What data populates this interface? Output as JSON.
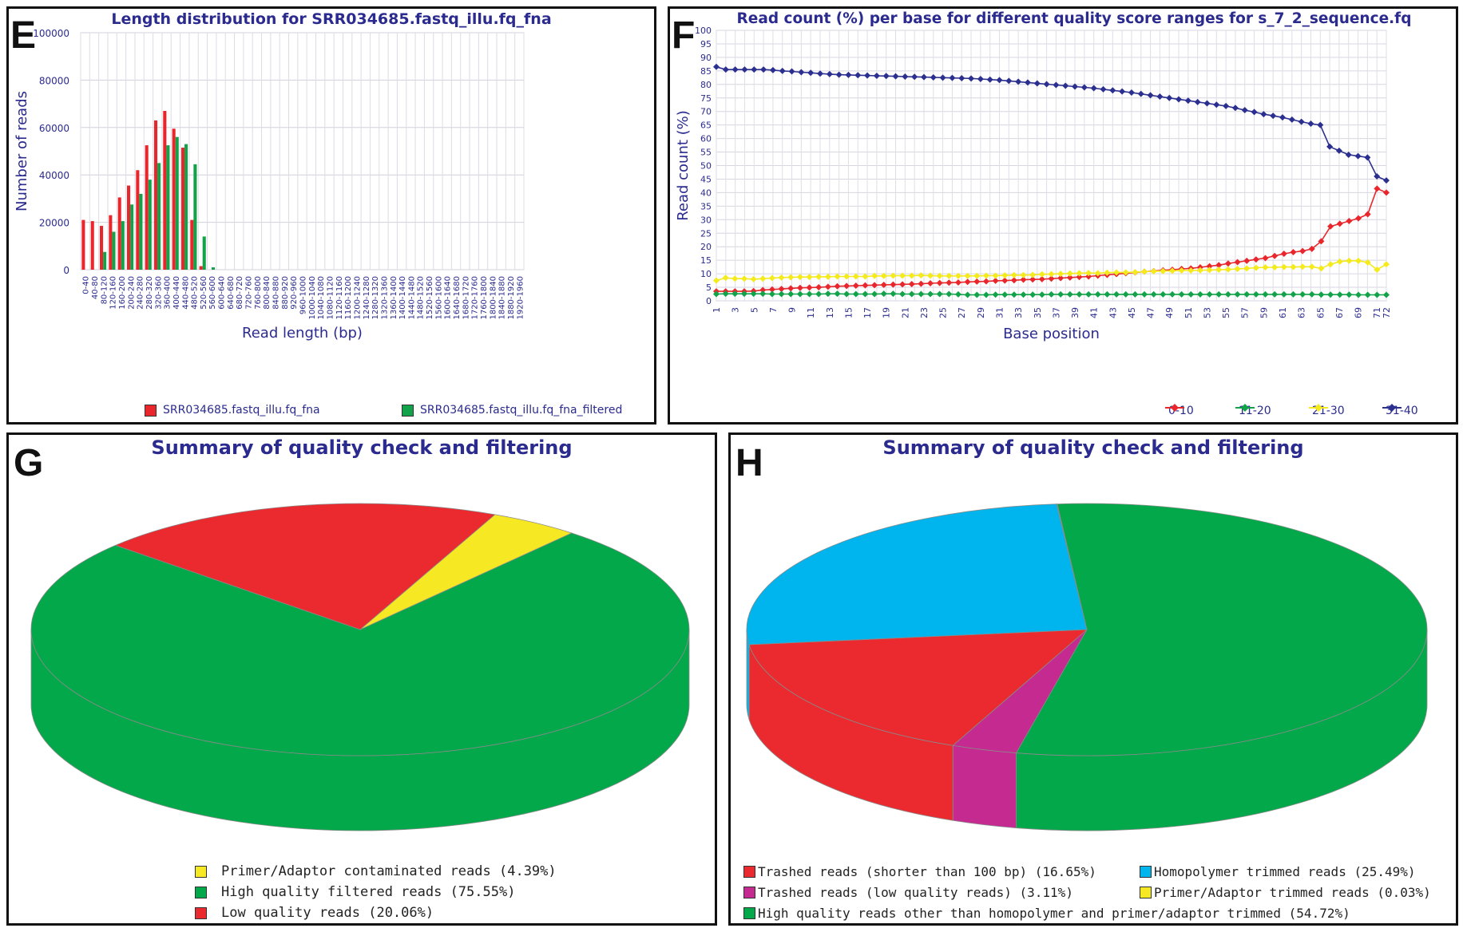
{
  "panels": {
    "E": {
      "letter": "E"
    },
    "F": {
      "letter": "F"
    },
    "G": {
      "letter": "G"
    },
    "H": {
      "letter": "H"
    }
  },
  "chart_data": [
    {
      "type": "bar",
      "title": "Length distribution for SRR034685.fastq_illu.fq_fna",
      "xlabel": "Read length (bp)",
      "ylabel": "Number of reads",
      "ylim": [
        0,
        100000
      ],
      "yticks": [
        0,
        20000,
        40000,
        60000,
        80000,
        100000
      ],
      "grid": true,
      "legend_position": "bottom",
      "categories": [
        "0-40",
        "40-80",
        "80-120",
        "120-160",
        "160-200",
        "200-240",
        "240-280",
        "280-320",
        "320-360",
        "360-400",
        "400-440",
        "440-480",
        "480-520",
        "520-560",
        "560-600",
        "600-640",
        "640-680",
        "680-720",
        "720-760",
        "760-800",
        "800-840",
        "840-880",
        "880-920",
        "920-960",
        "960-1000",
        "1000-1040",
        "1040-1080",
        "1080-1120",
        "1120-1160",
        "1160-1200",
        "1200-1240",
        "1240-1280",
        "1280-1320",
        "1320-1360",
        "1360-1400",
        "1400-1440",
        "1440-1480",
        "1480-1520",
        "1520-1560",
        "1560-1600",
        "1600-1640",
        "1640-1680",
        "1680-1720",
        "1720-1760",
        "1760-1800",
        "1800-1840",
        "1840-1880",
        "1880-1920",
        "1920-1960"
      ],
      "series": [
        {
          "name": "SRR034685.fastq_illu.fq_fna",
          "color": "#e8262c",
          "values": [
            21000,
            20500,
            18500,
            23000,
            30500,
            35500,
            42000,
            52500,
            63000,
            67000,
            59500,
            51500,
            21000,
            1500,
            0,
            0,
            0,
            0,
            0,
            0,
            0,
            0,
            0,
            0,
            0,
            0,
            0,
            0,
            0,
            0,
            0,
            0,
            0,
            0,
            0,
            0,
            0,
            0,
            0,
            0,
            0,
            0,
            0,
            0,
            0,
            0,
            0,
            0,
            0
          ]
        },
        {
          "name": "SRR034685.fastq_illu.fq_fna_filtered",
          "color": "#12a34a",
          "values": [
            0,
            0,
            7500,
            16000,
            20500,
            27500,
            32000,
            38000,
            45000,
            52500,
            56000,
            53000,
            44500,
            14000,
            1000,
            0,
            0,
            0,
            0,
            0,
            0,
            0,
            0,
            0,
            0,
            0,
            0,
            0,
            0,
            0,
            0,
            0,
            0,
            0,
            0,
            0,
            0,
            0,
            0,
            0,
            0,
            0,
            0,
            0,
            0,
            0,
            0,
            0,
            0
          ]
        }
      ]
    },
    {
      "type": "line",
      "title": "Read count (%) per base for different quality score ranges for s_7_2_sequence.fq",
      "xlabel": "Base position",
      "ylabel": "Read count (%)",
      "ylim": [
        0,
        100
      ],
      "xlim": [
        1,
        72
      ],
      "grid": true,
      "legend_position": "bottom-right",
      "series": [
        {
          "name": "0-10",
          "color": "#e8262c",
          "values": [
            3.5,
            3.5,
            3.5,
            3.5,
            3.6,
            4,
            4.2,
            4.4,
            4.6,
            4.8,
            4.9,
            5,
            5.2,
            5.4,
            5.5,
            5.6,
            5.7,
            5.8,
            5.9,
            6,
            6.1,
            6.2,
            6.3,
            6.5,
            6.6,
            6.7,
            6.8,
            7,
            7.1,
            7.2,
            7.4,
            7.5,
            7.6,
            7.8,
            7.9,
            8,
            8.2,
            8.4,
            8.6,
            8.8,
            9,
            9.3,
            9.6,
            9.9,
            10.2,
            10.5,
            10.8,
            11,
            11.3,
            11.5,
            11.8,
            12,
            12.4,
            12.8,
            13.2,
            13.8,
            14.3,
            14.8,
            15.3,
            15.8,
            16.6,
            17.4,
            18,
            18.4,
            19.2,
            22,
            27.5,
            28.5,
            29.5,
            30.5,
            32,
            41.5,
            40
          ]
        },
        {
          "name": "11-20",
          "color": "#12a34a",
          "values": [
            2.5,
            2.6,
            2.6,
            2.6,
            2.6,
            2.6,
            2.5,
            2.5,
            2.5,
            2.5,
            2.5,
            2.5,
            2.6,
            2.6,
            2.5,
            2.5,
            2.5,
            2.5,
            2.6,
            2.6,
            2.5,
            2.5,
            2.5,
            2.5,
            2.5,
            2.5,
            2.4,
            2.2,
            2.2,
            2.2,
            2.3,
            2.3,
            2.3,
            2.3,
            2.3,
            2.3,
            2.4,
            2.4,
            2.4,
            2.4,
            2.4,
            2.4,
            2.4,
            2.4,
            2.4,
            2.4,
            2.4,
            2.4,
            2.4,
            2.4,
            2.4,
            2.4,
            2.4,
            2.4,
            2.4,
            2.4,
            2.4,
            2.4,
            2.4,
            2.4,
            2.4,
            2.4,
            2.4,
            2.4,
            2.4,
            2.3,
            2.3,
            2.3,
            2.3,
            2.2,
            2.2,
            2.2,
            2.2
          ]
        },
        {
          "name": "21-30",
          "color": "#f5ea1c",
          "values": [
            7.5,
            8.5,
            8.2,
            8.2,
            8,
            8.2,
            8.4,
            8.6,
            8.7,
            8.8,
            8.8,
            8.9,
            8.9,
            9,
            9,
            9,
            9,
            9.2,
            9.2,
            9.3,
            9.3,
            9.3,
            9.4,
            9.3,
            9.2,
            9.2,
            9.2,
            9.2,
            9.2,
            9.3,
            9.3,
            9.4,
            9.5,
            9.5,
            9.6,
            9.8,
            9.9,
            10,
            10.1,
            10.2,
            10.3,
            10.2,
            10.4,
            10.5,
            10.5,
            10.6,
            10.8,
            10.9,
            11,
            11.1,
            11.2,
            11.2,
            11.3,
            11.4,
            11.5,
            11.6,
            11.8,
            12,
            12.2,
            12.4,
            12.4,
            12.5,
            12.5,
            12.6,
            12.6,
            12,
            13.5,
            14.5,
            14.8,
            14.8,
            14.2,
            11.5,
            13.5
          ]
        },
        {
          "name": "31-40",
          "color": "#2b2f8f",
          "values": [
            86.5,
            85.5,
            85.5,
            85.5,
            85.5,
            85.5,
            85.3,
            85,
            84.8,
            84.5,
            84.3,
            84,
            83.8,
            83.6,
            83.5,
            83.4,
            83.3,
            83.2,
            83.1,
            83,
            82.9,
            82.8,
            82.7,
            82.6,
            82.5,
            82.4,
            82.3,
            82.2,
            82,
            81.8,
            81.6,
            81.3,
            81,
            80.7,
            80.4,
            80.1,
            79.8,
            79.5,
            79.2,
            78.9,
            78.6,
            78.2,
            77.8,
            77.4,
            77,
            76.5,
            76,
            75.5,
            75,
            74.5,
            74,
            73.5,
            73,
            72.5,
            72,
            71.3,
            70.5,
            69.8,
            69,
            68.4,
            67.8,
            67,
            66.2,
            65.5,
            65,
            57,
            55.5,
            54,
            53.5,
            53,
            46,
            44.5
          ]
        }
      ]
    },
    {
      "type": "pie",
      "title": "Summary of quality check and filtering",
      "slices": [
        {
          "label": "Primer/Adaptor contaminated reads (4.39%)",
          "value": 4.39,
          "color": "#f7e824"
        },
        {
          "label": "High quality filtered reads (75.55%)",
          "value": 75.55,
          "color": "#02a84a"
        },
        {
          "label": "Low quality reads (20.06%)",
          "value": 20.06,
          "color": "#ea2a2f"
        }
      ]
    },
    {
      "type": "pie",
      "title": "Summary of quality check and filtering",
      "slices": [
        {
          "label": "Trashed reads (shorter than 100 bp) (16.65%)",
          "value": 16.65,
          "color": "#ea2a2f"
        },
        {
          "label": "Homopolymer trimmed reads (25.49%)",
          "value": 25.49,
          "color": "#00b4ee"
        },
        {
          "label": "Trashed reads (low quality reads) (3.11%)",
          "value": 3.11,
          "color": "#c42a8f"
        },
        {
          "label": "Primer/Adaptor trimmed reads (0.03%)",
          "value": 0.03,
          "color": "#f7e824"
        },
        {
          "label": "High quality reads other than homopolymer and primer/adaptor trimmed (54.72%)",
          "value": 54.72,
          "color": "#02a84a"
        }
      ]
    }
  ]
}
